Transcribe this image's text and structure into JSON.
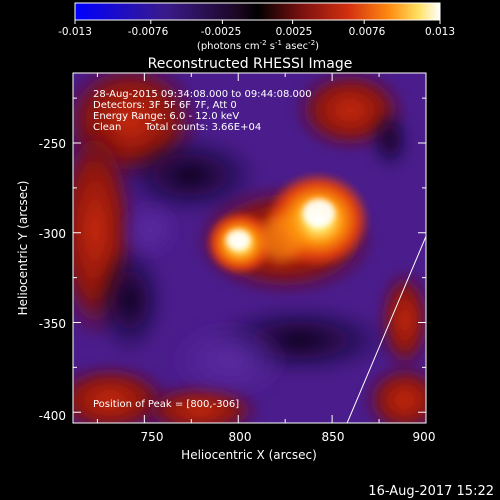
{
  "chart_data": {
    "type": "heatmap",
    "title": "Reconstructed RHESSI Image",
    "xlabel": "Heliocentric X (arcsec)",
    "ylabel": "Heliocentric Y (arcsec)",
    "xlim": [
      712,
      900
    ],
    "ylim": [
      -406,
      -211
    ],
    "xticks": [
      "750",
      "800",
      "850",
      "900"
    ],
    "yticks": [
      "-250",
      "-300",
      "-350",
      "-400"
    ],
    "grid": false,
    "colorbar": {
      "tick_labels": [
        "-0.013",
        "-0.0076",
        "-0.0025",
        "0.0025",
        "0.0076",
        "0.013"
      ],
      "unit_label": "(photons cm",
      "unit_sup1": "-2",
      "unit_mid": " s",
      "unit_sup2": "-1",
      "unit_mid2": " asec",
      "unit_sup3": "-2",
      "unit_end": ")",
      "range": [
        -0.013,
        0.013
      ],
      "colors": [
        "#0000ff",
        "#3a1a8a",
        "#1a0620",
        "#000000",
        "#7a1010",
        "#d43010",
        "#ff8a10",
        "#ffe060",
        "#ffffff"
      ]
    },
    "info": {
      "line1": "28-Aug-2015 09:34:08.000 to 09:44:08.000",
      "line2": "Detectors: 3F 5F 6F 7F, Att 0",
      "line3": "Energy Range: 6.0 - 12.0 keV",
      "line4a": "Clean",
      "line4b": "Total counts: 3.66E+04"
    },
    "peak_label": "Position of Peak = [800,-306]",
    "peak": [
      800,
      -306
    ],
    "sources": [
      {
        "x": 800,
        "y": -304,
        "value": 0.013
      },
      {
        "x": 843,
        "y": -289,
        "value": 0.012
      }
    ],
    "limb_line": [
      [
        858,
        -406
      ],
      [
        900,
        -302
      ]
    ]
  },
  "footer": {
    "timestamp": "16-Aug-2017 15:22"
  }
}
